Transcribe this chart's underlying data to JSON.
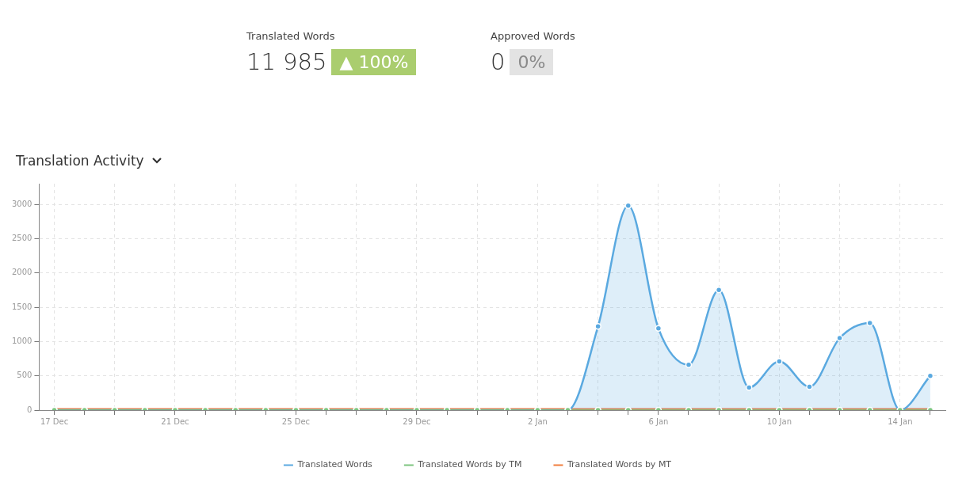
{
  "chart_data": [
    {
      "type": "other",
      "annotations": [
        "Translated Words",
        "11 985",
        "▲ 100%",
        "Approved Words",
        "0",
        "0%"
      ],
      "colors": [
        "#aacd6e",
        "#e3e3e3"
      ]
    },
    {
      "type": "line",
      "title": "Translation Activity",
      "categories": [
        "17 Dec",
        null,
        null,
        null,
        "21 Dec",
        null,
        null,
        null,
        "25 Dec",
        null,
        null,
        null,
        "29 Dec",
        null,
        null,
        null,
        "2 Jan",
        null,
        null,
        null,
        "6 Jan",
        null,
        null,
        null,
        "10 Jan",
        null,
        null,
        null,
        "14 Jan",
        null
      ],
      "series": [
        {
          "name": "Translated Words",
          "type": "area",
          "color": "#5aa9e0",
          "values": [
            0,
            0,
            0,
            0,
            0,
            0,
            0,
            0,
            0,
            0,
            0,
            0,
            0,
            0,
            0,
            0,
            0,
            0,
            1220,
            2980,
            1190,
            660,
            1750,
            330,
            710,
            340,
            1050,
            1270,
            0,
            500
          ]
        },
        {
          "name": "Translated Words by TM",
          "color": "#7cc47f",
          "values": [
            0,
            0,
            0,
            0,
            0,
            0,
            0,
            0,
            0,
            0,
            0,
            0,
            0,
            0,
            0,
            0,
            0,
            0,
            0,
            0,
            0,
            0,
            0,
            0,
            0,
            0,
            0,
            0,
            0,
            0
          ]
        },
        {
          "name": "Translated Words by MT",
          "color": "#f07d3c",
          "values": [
            0,
            0,
            0,
            0,
            0,
            0,
            0,
            0,
            0,
            0,
            0,
            0,
            0,
            0,
            0,
            0,
            0,
            0,
            0,
            0,
            0,
            0,
            0,
            0,
            0,
            0,
            0,
            0,
            0,
            0
          ]
        }
      ],
      "ylim": [
        0,
        3300
      ],
      "yticks": [
        0,
        500,
        1000,
        1500,
        2000,
        2500,
        3000
      ],
      "grid": true,
      "legend": "bottom",
      "marker": "circle"
    }
  ]
}
